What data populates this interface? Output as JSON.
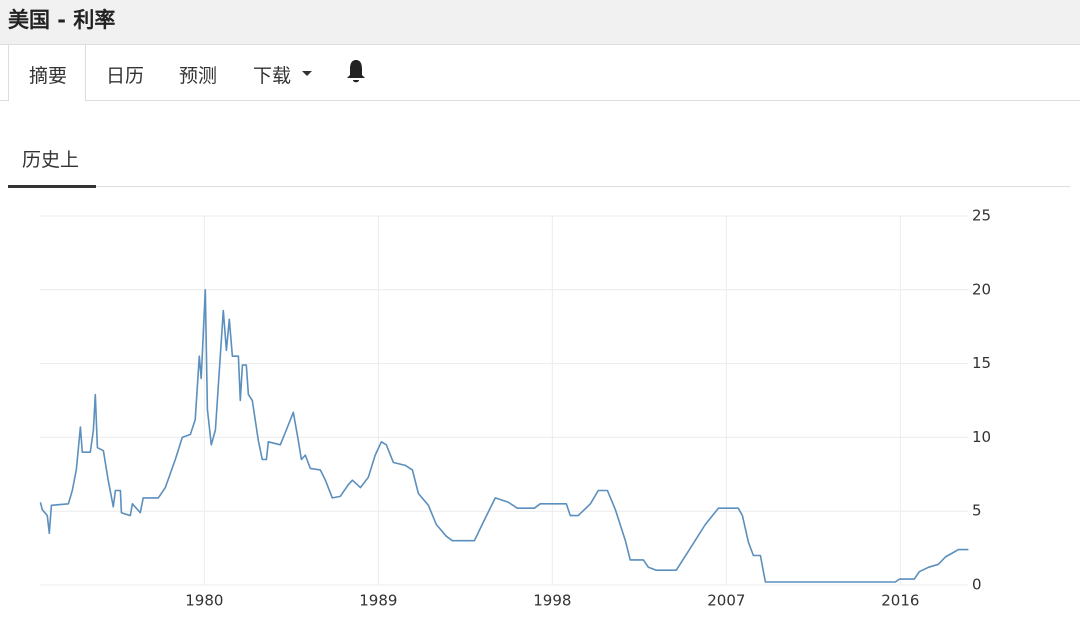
{
  "header": {
    "title": "美国 - 利率"
  },
  "tabs": [
    "摘要",
    "日历",
    "预测",
    "下载"
  ],
  "subtab": "历史上",
  "chart_data": {
    "type": "line",
    "color": "#5b8fbd",
    "grid": true,
    "x": [
      1971.52,
      1971.62,
      1971.88,
      1971.98,
      1972.09,
      1972.97,
      1973.17,
      1973.38,
      1973.59,
      1973.69,
      1974.1,
      1974.26,
      1974.36,
      1974.47,
      1974.78,
      1975.03,
      1975.29,
      1975.4,
      1975.66,
      1975.71,
      1976.17,
      1976.28,
      1976.69,
      1976.84,
      1977.62,
      1977.98,
      1978.5,
      1978.86,
      1979.28,
      1979.53,
      1979.74,
      1979.84,
      1980.05,
      1980.16,
      1980.36,
      1980.57,
      1980.98,
      1981.14,
      1981.29,
      1981.45,
      1981.76,
      1981.86,
      1981.97,
      1982.17,
      1982.28,
      1982.48,
      1982.79,
      1983.0,
      1983.21,
      1983.31,
      1983.93,
      1984.24,
      1984.6,
      1984.86,
      1985.02,
      1985.22,
      1985.48,
      1986.0,
      1986.26,
      1986.62,
      1987.03,
      1987.45,
      1987.66,
      1988.07,
      1988.48,
      1988.84,
      1989.16,
      1989.41,
      1989.78,
      1990.4,
      1990.76,
      1991.07,
      1991.59,
      1992.0,
      1992.52,
      1992.83,
      1993.97,
      1994.48,
      1995.05,
      1995.72,
      1996.19,
      1997.07,
      1997.38,
      1998.72,
      1998.93,
      1999.34,
      1999.97,
      2000.38,
      2000.85,
      2001.26,
      2001.78,
      2002.03,
      2002.71,
      2002.97,
      2003.38,
      2004.41,
      2005.14,
      2005.91,
      2006.59,
      2007.62,
      2007.83,
      2008.14,
      2008.4,
      2008.76,
      2009.02,
      2015.74,
      2015.95,
      2016.72,
      2016.98,
      2017.45,
      2017.97,
      2018.33,
      2018.74,
      2019.0,
      2019.52
    ],
    "values": [
      5.6,
      5.1,
      4.7,
      3.5,
      5.4,
      5.5,
      6.4,
      7.8,
      10.7,
      9.0,
      9.0,
      10.5,
      12.9,
      9.3,
      9.1,
      7.1,
      5.3,
      6.4,
      6.4,
      4.9,
      4.7,
      5.5,
      4.9,
      5.9,
      5.9,
      6.6,
      8.5,
      10.0,
      10.2,
      11.2,
      15.5,
      14.0,
      20.0,
      11.9,
      9.5,
      10.5,
      18.6,
      15.9,
      18.0,
      15.5,
      15.5,
      12.5,
      14.9,
      14.9,
      12.9,
      12.5,
      9.8,
      8.5,
      8.5,
      9.7,
      9.5,
      10.5,
      11.7,
      9.8,
      8.5,
      8.8,
      7.9,
      7.8,
      7.1,
      5.9,
      6.0,
      6.8,
      7.1,
      6.6,
      7.3,
      8.8,
      9.7,
      9.5,
      8.3,
      8.1,
      7.8,
      6.2,
      5.4,
      4.1,
      3.3,
      3.0,
      3.0,
      4.4,
      5.9,
      5.6,
      5.2,
      5.2,
      5.5,
      5.5,
      4.7,
      4.7,
      5.5,
      6.4,
      6.4,
      5.1,
      3.0,
      1.7,
      1.7,
      1.2,
      1.0,
      1.0,
      2.5,
      4.1,
      5.2,
      5.2,
      4.7,
      2.9,
      2.0,
      2.0,
      0.2,
      0.2,
      0.4,
      0.4,
      0.9,
      1.2,
      1.4,
      1.9,
      2.2,
      2.4,
      2.4
    ],
    "xlim": [
      1971.5,
      2019.5
    ],
    "xticks": [
      1980,
      1989,
      1998,
      2007,
      2016
    ],
    "ylim": [
      0,
      25
    ],
    "yticks": [
      0,
      5,
      10,
      15,
      20,
      25
    ]
  }
}
